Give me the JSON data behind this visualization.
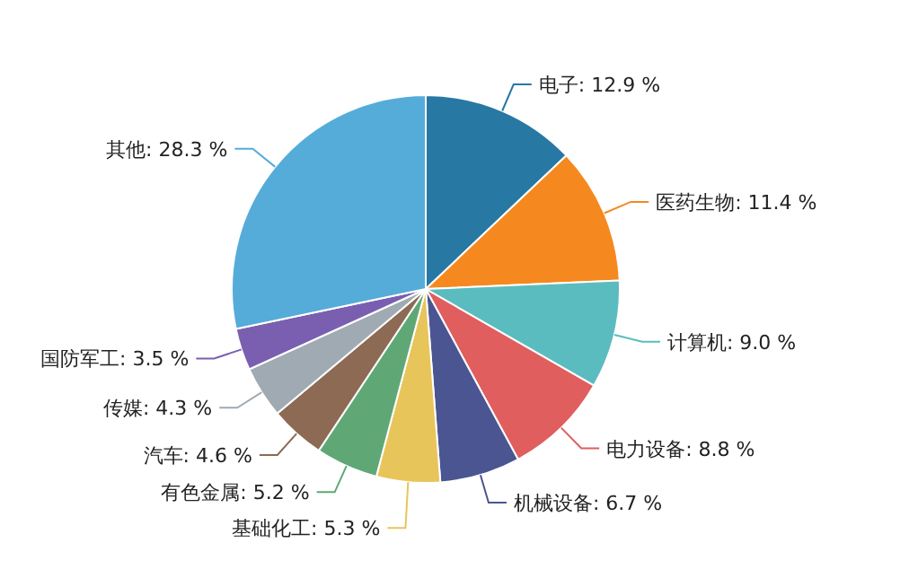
{
  "chart_data": {
    "type": "pie",
    "categories": [
      "电子",
      "医药生物",
      "计算机",
      "电力设备",
      "机械设备",
      "基础化工",
      "有色金属",
      "汽车",
      "传媒",
      "国防军工",
      "其他"
    ],
    "values": [
      12.9,
      11.4,
      9.0,
      8.8,
      6.7,
      5.3,
      5.2,
      4.6,
      4.3,
      3.5,
      28.3
    ],
    "value_labels": [
      "12.9 %",
      "11.4 %",
      "9.0 %",
      "8.8 %",
      "6.7 %",
      "5.3 %",
      "5.2 %",
      "4.6 %",
      "4.3 %",
      "3.5 %",
      "28.3 %"
    ],
    "colors": [
      "#2878a4",
      "#f5891f",
      "#5bbcbf",
      "#e05e5e",
      "#4a5592",
      "#e8c55a",
      "#5fa876",
      "#8c6a54",
      "#a0aab3",
      "#7a5fb0",
      "#55acd9"
    ]
  }
}
